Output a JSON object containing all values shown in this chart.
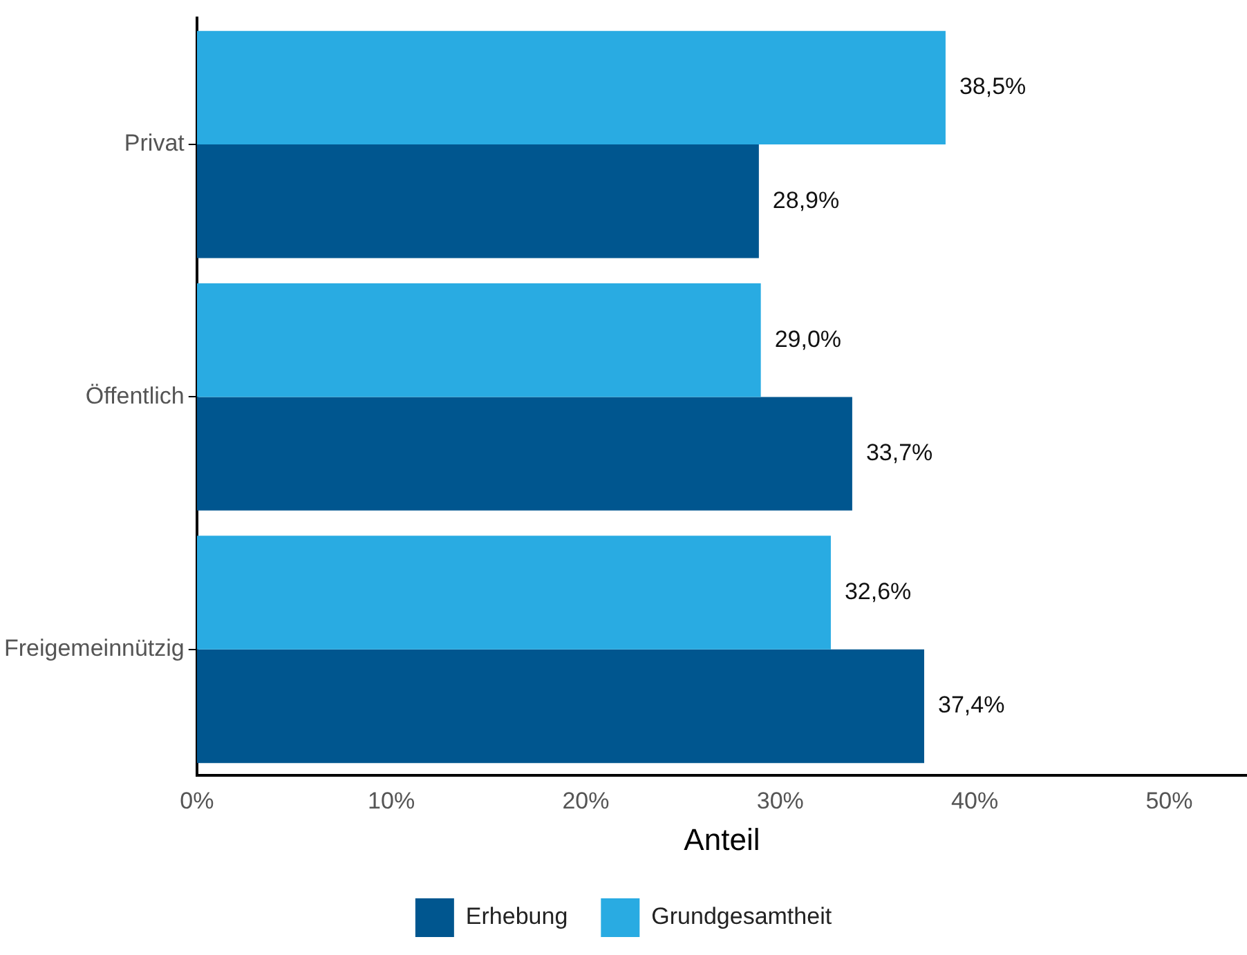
{
  "chart_data": {
    "type": "bar",
    "orientation": "horizontal",
    "xlabel": "Anteil",
    "categories": [
      "Privat",
      "Öffentlich",
      "Freigemeinnützig"
    ],
    "series": [
      {
        "name": "Erhebung",
        "color": "#00568f",
        "values": [
          28.9,
          33.7,
          37.4
        ],
        "value_labels": [
          "28,9%",
          "33,7%",
          "37,4%"
        ]
      },
      {
        "name": "Grundgesamtheit",
        "color": "#29abe2",
        "values": [
          38.5,
          29.0,
          32.6
        ],
        "value_labels": [
          "38,5%",
          "29,0%",
          "32,6%"
        ]
      }
    ],
    "xlim": [
      0,
      54
    ],
    "xticks": [
      {
        "value": 0,
        "label": "0%"
      },
      {
        "value": 10,
        "label": "10%"
      },
      {
        "value": 20,
        "label": "20%"
      },
      {
        "value": 30,
        "label": "30%"
      },
      {
        "value": 40,
        "label": "40%"
      },
      {
        "value": 50,
        "label": "50%"
      }
    ],
    "grid": false,
    "legend": "bottom"
  }
}
